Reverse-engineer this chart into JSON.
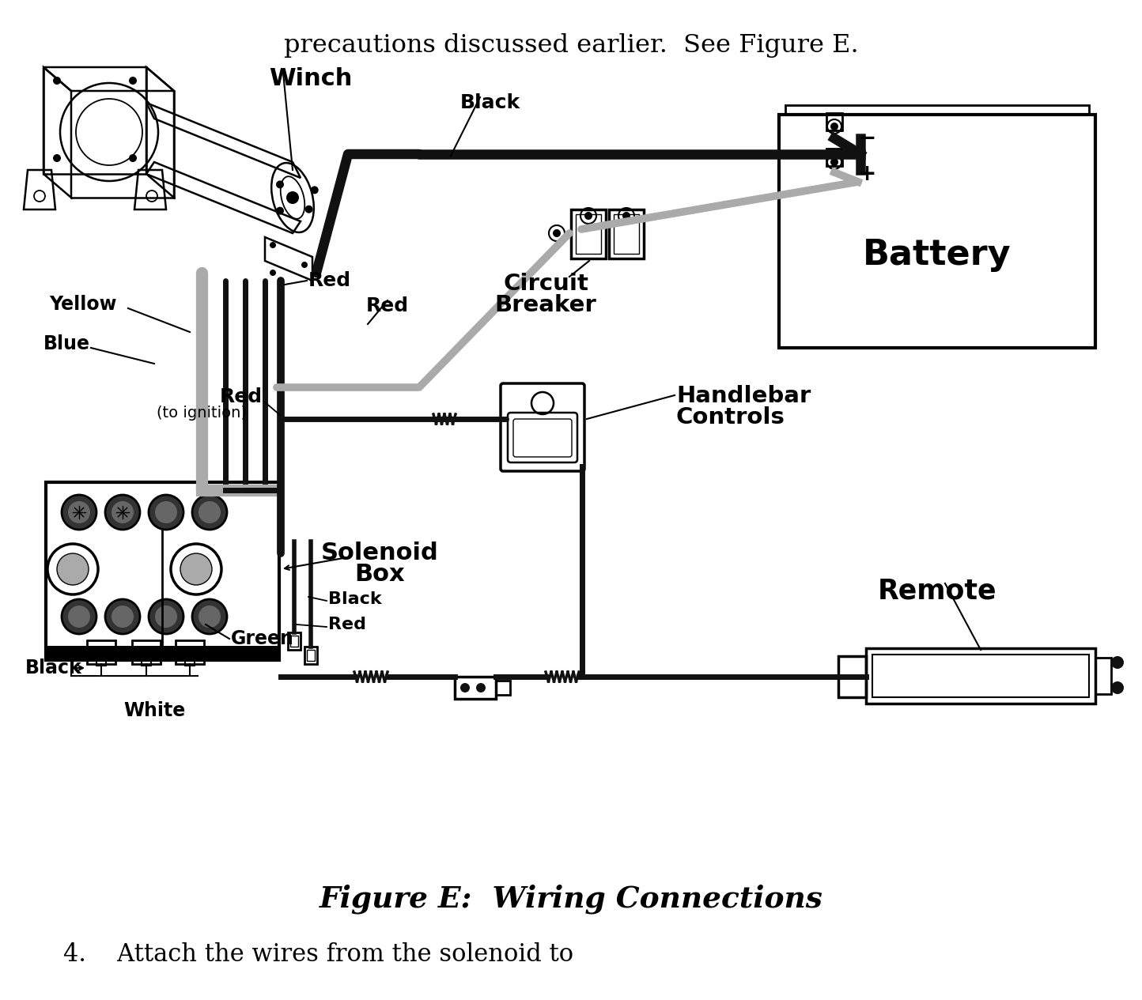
{
  "bg": "#ffffff",
  "lc": "#000000",
  "gc": "#aaaaaa",
  "gc2": "#888888",
  "dc": "#111111",
  "title_top": "precautions discussed earlier.  See Figure E.",
  "title_bottom": "Figure E:  Wiring Connections",
  "subtitle_bottom": "4.    Attach the wires from the solenoid to",
  "label_winch": "Winch",
  "label_black_top": "Black",
  "label_yellow": "Yellow",
  "label_blue": "Blue",
  "label_red_mid": "Red",
  "label_red_ign_1": "Red",
  "label_red_ign_2": "(to ignition)",
  "label_circuit_1": "Circuit",
  "label_circuit_2": "Breaker",
  "label_battery": "Battery",
  "label_minus": "−",
  "label_plus": "+",
  "label_handlebar_1": "Handlebar",
  "label_handlebar_2": "Controls",
  "label_solenoid_1": "Solenoid",
  "label_solenoid_2": "Box",
  "label_green": "Green",
  "label_black_bot": "Black",
  "label_red_bot": "Red",
  "label_black_left": "Black",
  "label_white": "White",
  "label_remote": "Remote"
}
